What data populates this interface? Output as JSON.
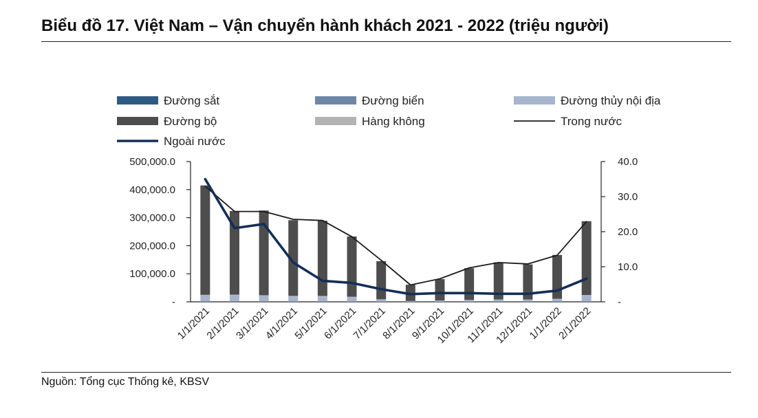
{
  "title": "Biểu đồ 17. Việt Nam – Vận chuyển hành khách 2021 - 2022 (triệu người)",
  "source": "Nguồn: Tổng cục Thống kê, KBSV",
  "chart_data": {
    "type": "bar",
    "stacked": true,
    "categories": [
      "1/1/2021",
      "2/1/2021",
      "3/1/2021",
      "4/1/2021",
      "5/1/2021",
      "6/1/2021",
      "7/1/2021",
      "8/1/2021",
      "9/1/2021",
      "10/1/2021",
      "11/1/2021",
      "12/1/2021",
      "1/1/2022",
      "2/1/2022"
    ],
    "y_left": {
      "ylim": [
        0,
        500000
      ],
      "ticks": [
        "-",
        "100,000.0",
        "200,000.0",
        "300,000.0",
        "400,000.0",
        "500,000.0"
      ]
    },
    "y_right": {
      "ylim": [
        0,
        40
      ],
      "ticks": [
        "-",
        "10.0",
        "20.0",
        "30.0",
        "40.0"
      ]
    },
    "legend_position": "top",
    "series": [
      {
        "name": "Đường sắt",
        "kind": "bar",
        "axis": "left",
        "color": "#2e5b82",
        "values": [
          500,
          500,
          500,
          400,
          400,
          300,
          200,
          100,
          100,
          200,
          300,
          300,
          400,
          500
        ]
      },
      {
        "name": "Đường biển",
        "kind": "bar",
        "axis": "left",
        "color": "#6f86a6",
        "values": [
          400,
          400,
          400,
          300,
          300,
          300,
          200,
          100,
          100,
          200,
          300,
          300,
          300,
          400
        ]
      },
      {
        "name": "Đường thủy nội địa",
        "kind": "bar",
        "axis": "left",
        "color": "#a6b4cc",
        "values": [
          21000,
          22000,
          20000,
          18000,
          18000,
          16000,
          8000,
          2500,
          4500,
          6000,
          7000,
          7000,
          9000,
          21000
        ]
      },
      {
        "name": "Đường bộ",
        "kind": "bar",
        "axis": "left",
        "color": "#4d4d4d",
        "values": [
          390000,
          298000,
          302000,
          270000,
          268000,
          215000,
          136000,
          58000,
          76000,
          113000,
          132000,
          125000,
          156000,
          263000
        ]
      },
      {
        "name": "Hàng không",
        "kind": "bar",
        "axis": "left",
        "color": "#b3b3b3",
        "values": [
          3000,
          2800,
          2600,
          2400,
          2300,
          1500,
          600,
          100,
          100,
          300,
          800,
          900,
          1300,
          2500
        ]
      },
      {
        "name": "Trong nước",
        "kind": "line",
        "axis": "left",
        "color": "#1a1a1a",
        "values": [
          412000,
          322000,
          322000,
          294000,
          290000,
          232000,
          148000,
          60000,
          82000,
          121000,
          140000,
          135000,
          166000,
          286000
        ]
      },
      {
        "name": "Ngoài nước",
        "kind": "line",
        "axis": "right",
        "color": "#142e57",
        "values": [
          35.0,
          21.0,
          22.2,
          11.2,
          6.0,
          5.4,
          3.6,
          2.2,
          2.5,
          2.5,
          2.3,
          2.3,
          3.2,
          6.6
        ]
      }
    ]
  }
}
